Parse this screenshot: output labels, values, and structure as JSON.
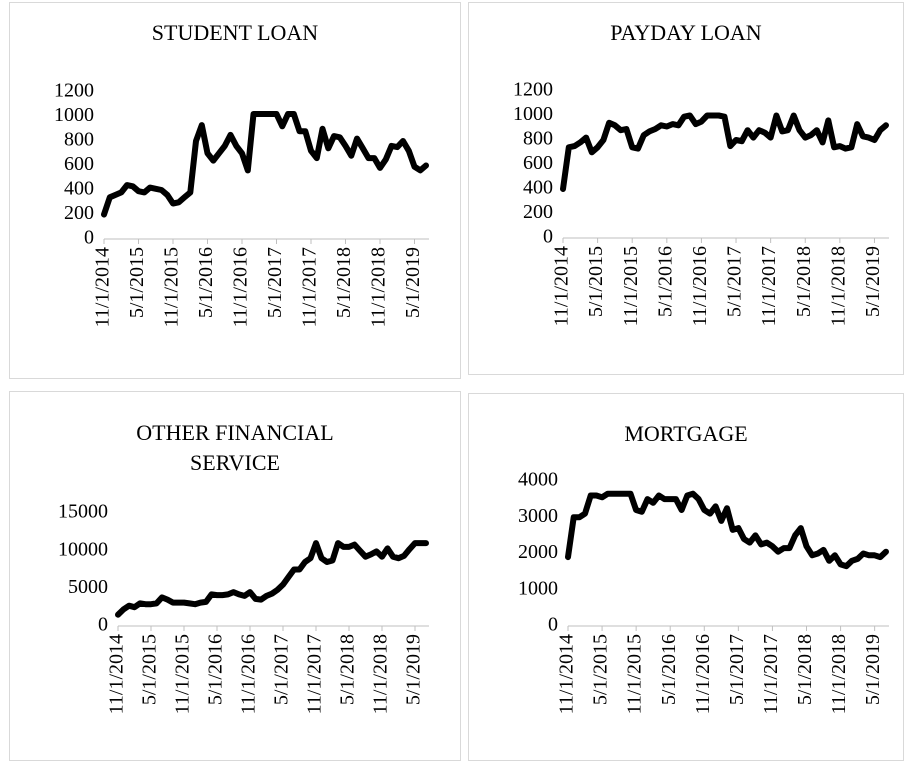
{
  "chart_data": [
    {
      "type": "line",
      "title": "STUDENT LOAN",
      "categories": [
        "11/1/2014",
        null,
        null,
        null,
        null,
        null,
        "5/1/2015",
        null,
        null,
        null,
        null,
        null,
        "11/1/2015",
        null,
        null,
        null,
        null,
        null,
        "5/1/2016",
        null,
        null,
        null,
        null,
        null,
        "11/1/2016",
        null,
        null,
        null,
        null,
        null,
        "5/1/2017",
        null,
        null,
        null,
        null,
        null,
        "11/1/2017",
        null,
        null,
        null,
        null,
        null,
        "5/1/2018",
        null,
        null,
        null,
        null,
        null,
        "11/1/2018",
        null,
        null,
        null,
        null,
        null,
        "5/1/2019",
        null,
        null
      ],
      "values": [
        200,
        340,
        360,
        380,
        440,
        430,
        390,
        380,
        420,
        410,
        400,
        360,
        290,
        300,
        340,
        380,
        800,
        930,
        700,
        640,
        700,
        760,
        850,
        760,
        700,
        560,
        1020,
        1020,
        1020,
        1020,
        1020,
        920,
        1020,
        1020,
        880,
        880,
        720,
        660,
        900,
        740,
        840,
        830,
        760,
        680,
        820,
        740,
        660,
        660,
        580,
        650,
        760,
        750,
        800,
        720,
        590,
        560,
        600
      ],
      "color": "#000000",
      "ylim": [
        0,
        1200
      ],
      "yticks": [
        0,
        200,
        400,
        600,
        800,
        1000,
        1200
      ]
    },
    {
      "type": "line",
      "title": "PAYDAY LOAN",
      "categories": [
        "11/1/2014",
        null,
        null,
        null,
        null,
        null,
        "5/1/2015",
        null,
        null,
        null,
        null,
        null,
        "11/1/2015",
        null,
        null,
        null,
        null,
        null,
        "5/1/2016",
        null,
        null,
        null,
        null,
        null,
        "11/1/2016",
        null,
        null,
        null,
        null,
        null,
        "5/1/2017",
        null,
        null,
        null,
        null,
        null,
        "11/1/2017",
        null,
        null,
        null,
        null,
        null,
        "5/1/2018",
        null,
        null,
        null,
        null,
        null,
        "11/1/2018",
        null,
        null,
        null,
        null,
        null,
        "5/1/2019",
        null,
        null
      ],
      "values": [
        400,
        740,
        750,
        780,
        820,
        700,
        740,
        800,
        940,
        920,
        880,
        890,
        740,
        730,
        840,
        870,
        890,
        920,
        910,
        930,
        920,
        990,
        1000,
        930,
        950,
        1000,
        1000,
        1000,
        990,
        750,
        800,
        790,
        880,
        820,
        880,
        860,
        820,
        1000,
        870,
        880,
        1000,
        880,
        820,
        840,
        880,
        780,
        960,
        740,
        750,
        730,
        740,
        930,
        830,
        820,
        800,
        880,
        920
      ],
      "color": "#000000",
      "ylim": [
        0,
        1200
      ],
      "yticks": [
        0,
        200,
        400,
        600,
        800,
        1000,
        1200
      ]
    },
    {
      "type": "line",
      "title": "OTHER FINANCIAL SERVICE",
      "categories": [
        "11/1/2014",
        null,
        null,
        null,
        null,
        null,
        "5/1/2015",
        null,
        null,
        null,
        null,
        null,
        "11/1/2015",
        null,
        null,
        null,
        null,
        null,
        "5/1/2016",
        null,
        null,
        null,
        null,
        null,
        "11/1/2016",
        null,
        null,
        null,
        null,
        null,
        "5/1/2017",
        null,
        null,
        null,
        null,
        null,
        "11/1/2017",
        null,
        null,
        null,
        null,
        null,
        "5/1/2018",
        null,
        null,
        null,
        null,
        null,
        "11/1/2018",
        null,
        null,
        null,
        null,
        null,
        "5/1/2019",
        null,
        null
      ],
      "values": [
        1500,
        2200,
        2700,
        2500,
        3000,
        2900,
        2900,
        3000,
        3800,
        3500,
        3100,
        3100,
        3100,
        3000,
        2900,
        3100,
        3200,
        4200,
        4100,
        4100,
        4200,
        4500,
        4200,
        4000,
        4500,
        3600,
        3500,
        4000,
        4300,
        4800,
        5500,
        6500,
        7500,
        7500,
        8500,
        9000,
        11000,
        9000,
        8500,
        8700,
        11000,
        10500,
        10500,
        10800,
        10000,
        9200,
        9500,
        9900,
        9200,
        10300,
        9200,
        9000,
        9300,
        10200,
        11000,
        11000,
        11000
      ],
      "color": "#000000",
      "ylim": [
        0,
        15000
      ],
      "yticks": [
        0,
        5000,
        10000,
        15000
      ]
    },
    {
      "type": "line",
      "title": "MORTGAGE",
      "categories": [
        "11/1/2014",
        null,
        null,
        null,
        null,
        null,
        "5/1/2015",
        null,
        null,
        null,
        null,
        null,
        "11/1/2015",
        null,
        null,
        null,
        null,
        null,
        "5/1/2016",
        null,
        null,
        null,
        null,
        null,
        "11/1/2016",
        null,
        null,
        null,
        null,
        null,
        "5/1/2017",
        null,
        null,
        null,
        null,
        null,
        "11/1/2017",
        null,
        null,
        null,
        null,
        null,
        "5/1/2018",
        null,
        null,
        null,
        null,
        null,
        "11/1/2018",
        null,
        null,
        null,
        null,
        null,
        "5/1/2019",
        null,
        null
      ],
      "values": [
        1900,
        3000,
        3000,
        3100,
        3600,
        3600,
        3550,
        3650,
        3650,
        3650,
        3650,
        3650,
        3200,
        3150,
        3500,
        3400,
        3600,
        3500,
        3500,
        3500,
        3200,
        3600,
        3650,
        3500,
        3200,
        3100,
        3300,
        2900,
        3250,
        2650,
        2700,
        2400,
        2300,
        2500,
        2250,
        2300,
        2200,
        2050,
        2150,
        2150,
        2500,
        2700,
        2200,
        1950,
        2000,
        2100,
        1800,
        1950,
        1700,
        1650,
        1800,
        1850,
        2000,
        1950,
        1950,
        1900,
        2050
      ],
      "color": "#000000",
      "ylim": [
        0,
        4000
      ],
      "yticks": [
        0,
        1000,
        2000,
        3000,
        4000
      ]
    }
  ]
}
